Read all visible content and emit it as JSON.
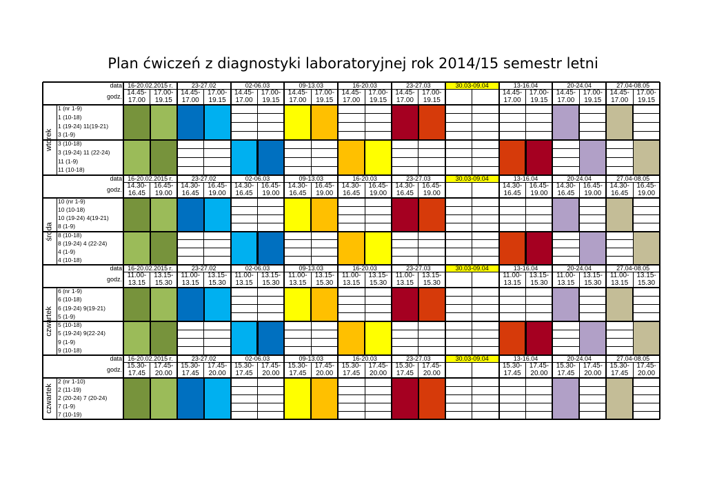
{
  "title": "Plan ćwiczeń  z diagnostyki laboratoryjnej rok 2014/15 semestr letni",
  "labels": {
    "data": "data",
    "godz": "godz."
  },
  "dates": [
    "16-20.02.2015 r.",
    "23-27.02",
    "02-06.03",
    "09-13.03",
    "16-20.03",
    "23-27.03",
    "30.03-09.04",
    "13-16.04",
    "20-24.04",
    "27.04-08.05"
  ],
  "holiday_index": 6,
  "colors": {
    "darkgreen": "#77933c",
    "lightgreen": "#9bbb59",
    "blue": "#0070c0",
    "cyan": "#00b0f0",
    "yellow": "#ffff00",
    "gold": "#ffc000",
    "darkred": "#a50021",
    "orange": "#d63a0a",
    "purple": "#b1a0c7",
    "tan": "#c4bd97",
    "holiday": "#ffff00"
  },
  "blocks": [
    {
      "day": "wtorek",
      "times": [
        [
          "14.45-",
          "17.00"
        ],
        [
          "17.00-",
          "19.15"
        ]
      ],
      "groups": [
        "1 (nr 1-9)",
        "1 (10-18)",
        "1 (19-24) 11(19-21)",
        "3 (1-9)",
        "3 (10-18)",
        "3 (19-24) 11 (22-24)",
        "11 (1-9)",
        "11 (10-18)"
      ],
      "split": 4,
      "top": [
        "darkgreen",
        "lightgreen",
        "blue",
        "cyan",
        "",
        "",
        "yellow",
        "gold",
        "",
        "",
        "darkred",
        "orange",
        "",
        "",
        "",
        "",
        "purple",
        "",
        "tan",
        ""
      ],
      "bottom": [
        "lightgreen",
        "darkgreen",
        "",
        "",
        "cyan",
        "blue",
        "",
        "",
        "gold",
        "yellow",
        "",
        "",
        "",
        "",
        "orange",
        "darkred",
        "",
        "purple",
        "",
        "tan"
      ]
    },
    {
      "day": "środa",
      "times": [
        [
          "14.30-",
          "16.45"
        ],
        [
          "16.45-",
          "19.00"
        ]
      ],
      "groups": [
        "10 (nr 1-9)",
        "10 (10-18)",
        "10 (19-24) 4(19-21)",
        "8 (1-9)",
        "8 (10-18)",
        "8 (19-24) 4 (22-24)",
        "4 (1-9)",
        "4 (10-18)"
      ],
      "split": 4,
      "top": [
        "darkgreen",
        "lightgreen",
        "blue",
        "cyan",
        "",
        "",
        "yellow",
        "gold",
        "",
        "",
        "darkred",
        "orange",
        "",
        "",
        "",
        "",
        "purple",
        "",
        "tan",
        ""
      ],
      "bottom": [
        "lightgreen",
        "darkgreen",
        "",
        "",
        "cyan",
        "blue",
        "",
        "",
        "gold",
        "yellow",
        "",
        "",
        "",
        "",
        "orange",
        "darkred",
        "",
        "purple",
        "",
        "tan"
      ]
    },
    {
      "day": "czwartek",
      "times": [
        [
          "11.00-",
          "13.15"
        ],
        [
          "13.15-",
          "15.30"
        ]
      ],
      "groups": [
        "6 (nr 1-9)",
        "6 (10-18)",
        "6 (19-24) 9(19-21)",
        "5 (1-9)",
        "5 (10-18)",
        "5 (19-24) 9(22-24)",
        "9 (1-9)",
        "9 (10-18)"
      ],
      "split": 4,
      "top": [
        "darkgreen",
        "lightgreen",
        "blue",
        "cyan",
        "",
        "",
        "yellow",
        "gold",
        "",
        "",
        "darkred",
        "orange",
        "",
        "",
        "",
        "",
        "purple",
        "",
        "tan",
        ""
      ],
      "bottom": [
        "lightgreen",
        "darkgreen",
        "",
        "",
        "cyan",
        "blue",
        "",
        "",
        "gold",
        "yellow",
        "",
        "",
        "",
        "",
        "orange",
        "darkred",
        "",
        "purple",
        "",
        "tan"
      ]
    },
    {
      "day": "czwartek",
      "times": [
        [
          "15.30-",
          "17.45"
        ],
        [
          "17.45-",
          "20.00"
        ]
      ],
      "groups": [
        "2 (nr 1-10)",
        "2 (11-19)",
        "2 (20-24) 7 (20-24)",
        "7 (1-9)",
        "7 (10-19)"
      ],
      "split": 5,
      "top": [
        "darkgreen",
        "lightgreen",
        "blue",
        "cyan",
        "",
        "",
        "yellow",
        "gold",
        "",
        "",
        "darkred",
        "orange",
        "",
        "",
        "",
        "",
        "purple",
        "",
        "tan",
        ""
      ],
      "bottom": null
    }
  ]
}
